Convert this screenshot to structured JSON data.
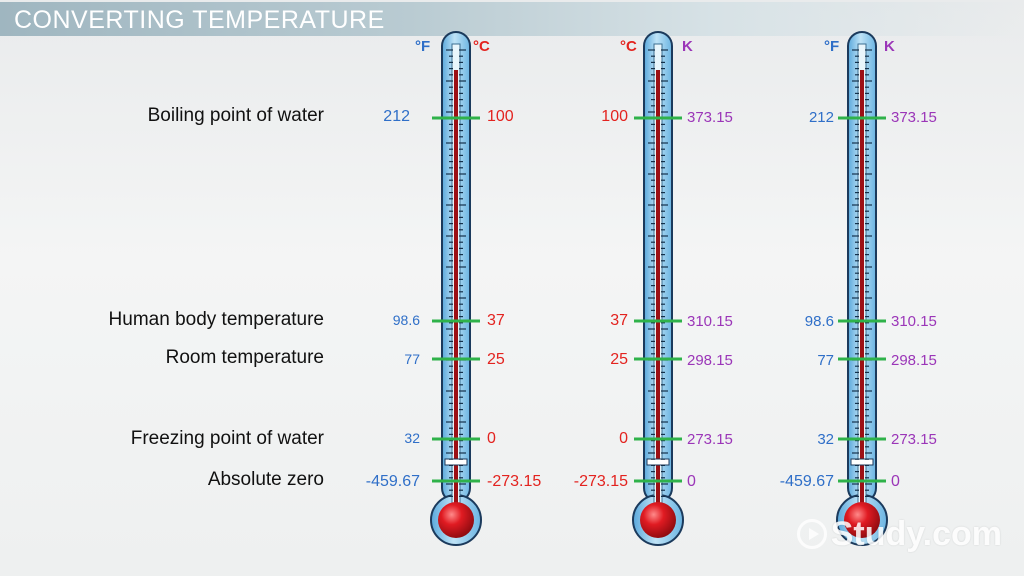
{
  "title": "CONVERTING TEMPERATURE",
  "labels": {
    "boiling": "Boiling point of water",
    "body": "Human body temperature",
    "room": "Room temperature",
    "freezing": "Freezing point of water",
    "absolute": "Absolute zero"
  },
  "thermometers": [
    {
      "left_unit": "°F",
      "right_unit": "°C",
      "left": {
        "boiling": "212",
        "body": "98.6",
        "room": "77",
        "freezing": "32",
        "absolute": "-459.67"
      },
      "right": {
        "boiling": "100",
        "body": "37",
        "room": "25",
        "freezing": "0",
        "absolute": "-273.15"
      }
    },
    {
      "left_unit": "°C",
      "right_unit": "K",
      "left": {
        "boiling": "100",
        "body": "37",
        "room": "25",
        "freezing": "0",
        "absolute": "-273.15"
      },
      "right": {
        "boiling": "373.15",
        "body": "310.15",
        "room": "298.15",
        "freezing": "273.15",
        "absolute": "0"
      }
    },
    {
      "left_unit": "°F",
      "right_unit": "K",
      "left": {
        "boiling": "212",
        "body": "98.6",
        "room": "77",
        "freezing": "32",
        "absolute": "-459.67"
      },
      "right": {
        "boiling": "373.15",
        "body": "310.15",
        "room": "298.15",
        "freezing": "273.15",
        "absolute": "0"
      }
    }
  ],
  "colors": {
    "fahrenheit": "#2f6fc8",
    "celsius": "#e3231f",
    "kelvin": "#9b36b8",
    "marker": "#2fb24a",
    "tube": "#8ec9ea",
    "bulb": "#d0141b"
  },
  "watermark": "Study.com"
}
